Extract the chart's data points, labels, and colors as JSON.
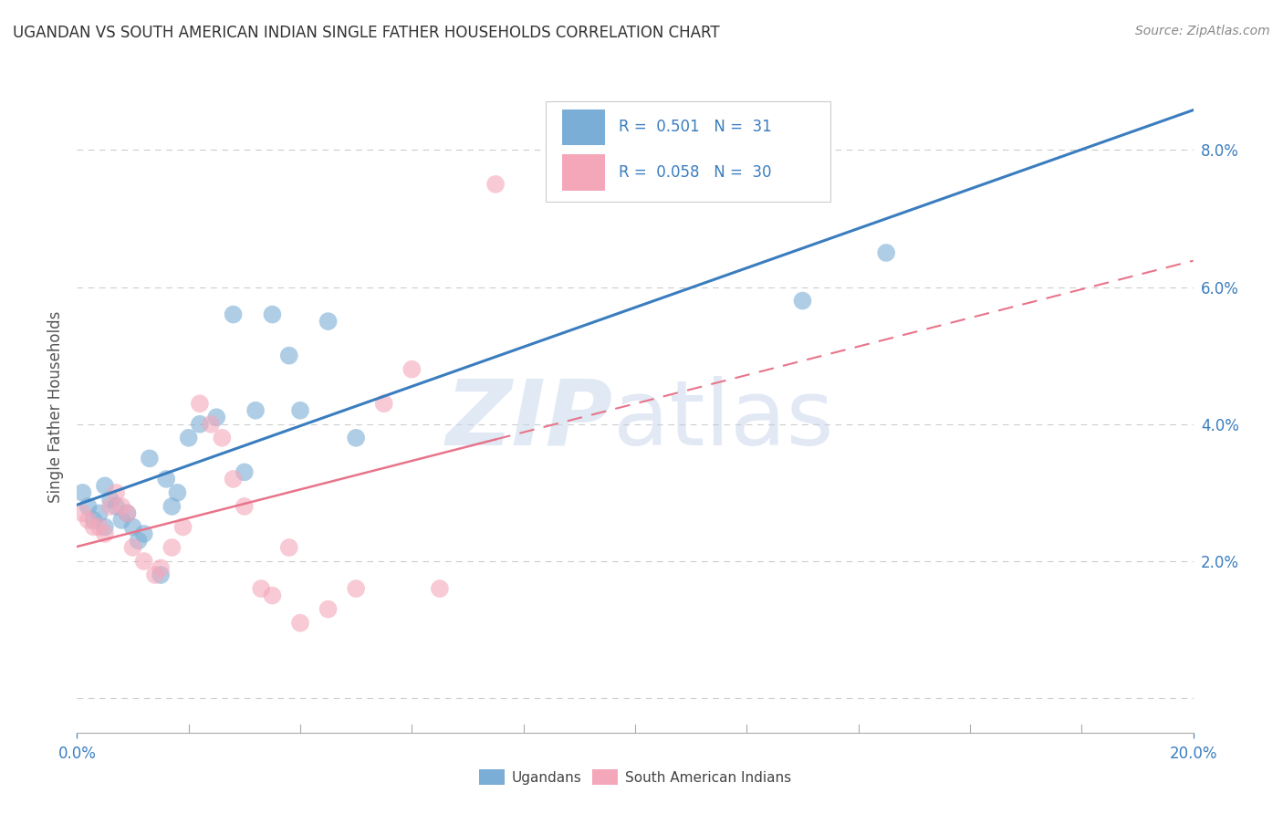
{
  "title": "UGANDAN VS SOUTH AMERICAN INDIAN SINGLE FATHER HOUSEHOLDS CORRELATION CHART",
  "source": "Source: ZipAtlas.com",
  "ylabel": "Single Father Households",
  "legend_label1": "Ugandans",
  "legend_label2": "South American Indians",
  "r1": "0.501",
  "n1": "31",
  "r2": "0.058",
  "n2": "30",
  "xlim": [
    0,
    0.2
  ],
  "ylim": [
    -0.005,
    0.09
  ],
  "ytick_vals": [
    0.0,
    0.02,
    0.04,
    0.06,
    0.08
  ],
  "ytick_labels": [
    "",
    "2.0%",
    "4.0%",
    "6.0%",
    "8.0%"
  ],
  "xtick_vals": [
    0.0,
    0.2
  ],
  "xtick_labels": [
    "0.0%",
    "20.0%"
  ],
  "color_ugandan": "#7aaed6",
  "color_sa_indian": "#f4a7b9",
  "line_color_ugandan": "#3a7dbf",
  "line_color_sa_solid": "#e8748a",
  "line_color_sa_dash": "#e8748a",
  "background_color": "#ffffff",
  "ugandan_x": [
    0.001,
    0.002,
    0.003,
    0.004,
    0.005,
    0.005,
    0.006,
    0.007,
    0.008,
    0.009,
    0.01,
    0.011,
    0.012,
    0.013,
    0.015,
    0.016,
    0.017,
    0.018,
    0.02,
    0.022,
    0.025,
    0.028,
    0.03,
    0.032,
    0.035,
    0.038,
    0.04,
    0.045,
    0.05,
    0.13,
    0.145
  ],
  "ugandan_y": [
    0.03,
    0.028,
    0.026,
    0.027,
    0.025,
    0.031,
    0.029,
    0.028,
    0.026,
    0.027,
    0.025,
    0.023,
    0.024,
    0.035,
    0.018,
    0.032,
    0.028,
    0.03,
    0.038,
    0.04,
    0.041,
    0.056,
    0.033,
    0.042,
    0.056,
    0.05,
    0.042,
    0.055,
    0.038,
    0.058,
    0.065
  ],
  "sa_x": [
    0.001,
    0.002,
    0.003,
    0.004,
    0.005,
    0.006,
    0.007,
    0.008,
    0.009,
    0.01,
    0.012,
    0.014,
    0.015,
    0.017,
    0.019,
    0.022,
    0.024,
    0.026,
    0.028,
    0.03,
    0.033,
    0.035,
    0.038,
    0.04,
    0.045,
    0.05,
    0.055,
    0.06,
    0.065,
    0.075
  ],
  "sa_y": [
    0.027,
    0.026,
    0.025,
    0.025,
    0.024,
    0.028,
    0.03,
    0.028,
    0.027,
    0.022,
    0.02,
    0.018,
    0.019,
    0.022,
    0.025,
    0.043,
    0.04,
    0.038,
    0.032,
    0.028,
    0.016,
    0.015,
    0.022,
    0.011,
    0.013,
    0.016,
    0.043,
    0.048,
    0.016,
    0.075
  ]
}
